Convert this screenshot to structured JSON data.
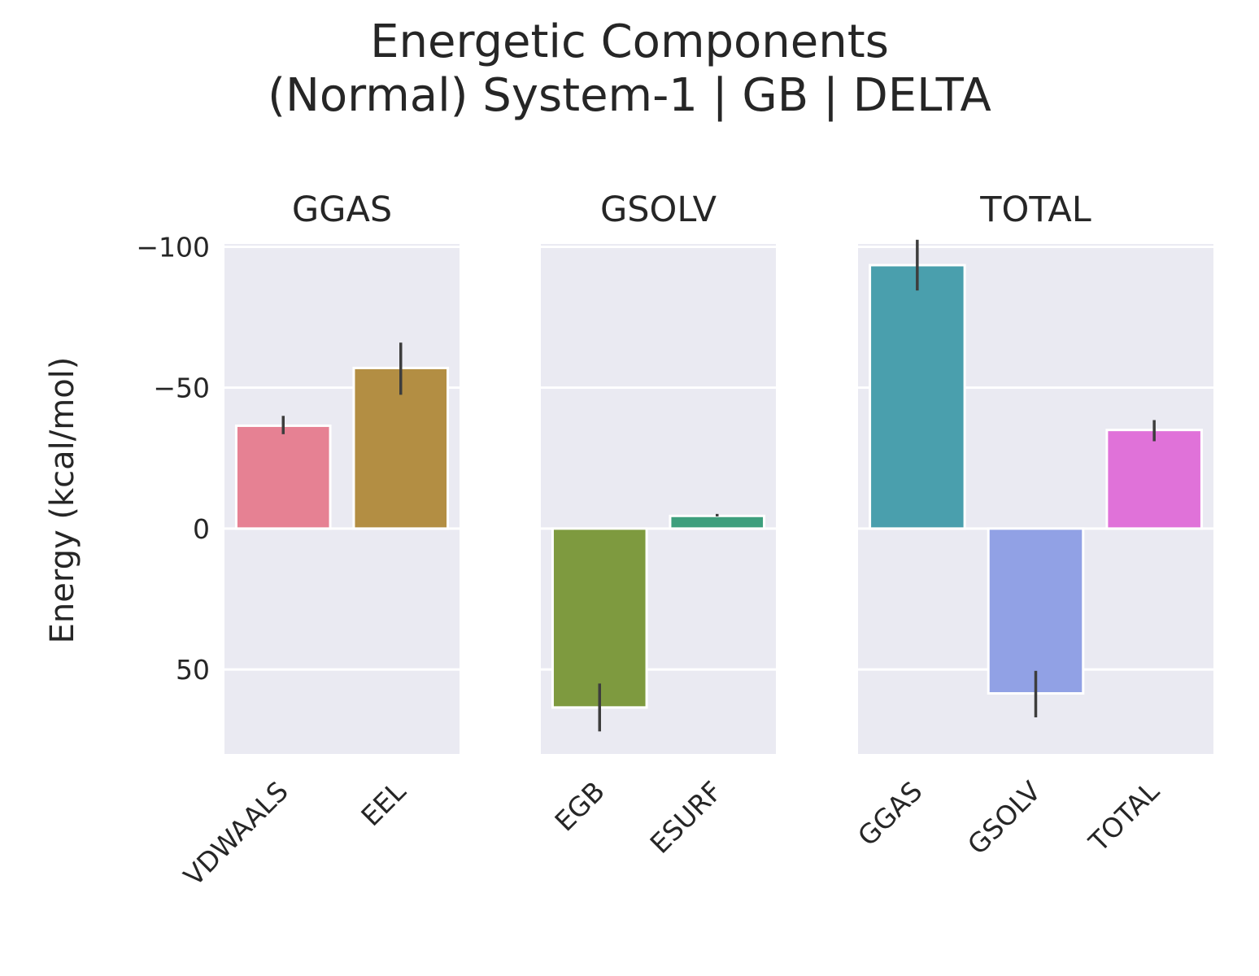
{
  "chart_data": {
    "type": "bar",
    "title_lines": [
      "Energetic Components",
      "(Normal) System-1 | GB | DELTA"
    ],
    "ylabel": "Energy (kcal/mol)",
    "y_inverted": true,
    "ylim": [
      -101,
      80
    ],
    "yticks": [
      -100,
      -50,
      0,
      50
    ],
    "ytick_labels": [
      "−100",
      "−50",
      "0",
      "50"
    ],
    "grid": true,
    "panels": [
      {
        "title": "GGAS",
        "bars": [
          {
            "label": "VDWAALS",
            "value": -36.5,
            "err_low": -33.5,
            "err_high": -40.0,
            "color": "#e68193"
          },
          {
            "label": "EEL",
            "value": -57.0,
            "err_low": -47.5,
            "err_high": -66.0,
            "color": "#b38e43"
          }
        ]
      },
      {
        "title": "GSOLV",
        "bars": [
          {
            "label": "EGB",
            "value": 63.5,
            "err_low": 55.0,
            "err_high": 72.0,
            "color": "#7e9a3f"
          },
          {
            "label": "ESURF",
            "value": -4.5,
            "err_low": -4.3,
            "err_high": -5.2,
            "color": "#3e9f7d"
          }
        ]
      },
      {
        "title": "TOTAL",
        "bars": [
          {
            "label": "GGAS",
            "value": -93.5,
            "err_low": -84.5,
            "err_high": -102.5,
            "color": "#4a9fad"
          },
          {
            "label": "GSOLV",
            "value": 58.5,
            "err_low": 50.5,
            "err_high": 67.0,
            "color": "#91a1e5"
          },
          {
            "label": "TOTAL",
            "value": -35.0,
            "err_low": -31.0,
            "err_high": -38.5,
            "color": "#e072d9"
          }
        ]
      }
    ]
  }
}
